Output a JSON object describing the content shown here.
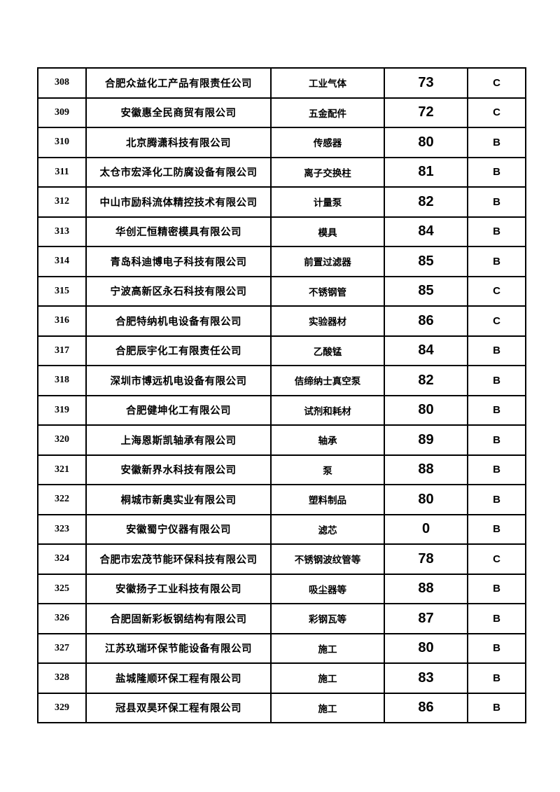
{
  "page": {
    "background_color": "#ffffff",
    "border_color": "#000000",
    "text_color": "#000000"
  },
  "table": {
    "columns": [
      {
        "key": "index"
      },
      {
        "key": "company"
      },
      {
        "key": "product"
      },
      {
        "key": "score"
      },
      {
        "key": "grade"
      }
    ],
    "rows": [
      {
        "index": "308",
        "company": "合肥众益化工产品有限责任公司",
        "product": "工业气体",
        "score": "73",
        "grade": "C"
      },
      {
        "index": "309",
        "company": "安徽惠全民商贸有限公司",
        "product": "五金配件",
        "score": "72",
        "grade": "C"
      },
      {
        "index": "310",
        "company": "北京腾潇科技有限公司",
        "product": "传感器",
        "score": "80",
        "grade": "B"
      },
      {
        "index": "311",
        "company": "太仓市宏泽化工防腐设备有限公司",
        "product": "离子交换柱",
        "score": "81",
        "grade": "B"
      },
      {
        "index": "312",
        "company": "中山市励科流体精控技术有限公司",
        "product": "计量泵",
        "score": "82",
        "grade": "B"
      },
      {
        "index": "313",
        "company": "华创汇恒精密模具有限公司",
        "product": "模具",
        "score": "84",
        "grade": "B"
      },
      {
        "index": "314",
        "company": "青岛科迪博电子科技有限公司",
        "product": "前置过滤器",
        "score": "85",
        "grade": "B"
      },
      {
        "index": "315",
        "company": "宁波高新区永石科技有限公司",
        "product": "不锈钢管",
        "score": "85",
        "grade": "C"
      },
      {
        "index": "316",
        "company": "合肥特纳机电设备有限公司",
        "product": "实验器材",
        "score": "86",
        "grade": "C"
      },
      {
        "index": "317",
        "company": "合肥辰宇化工有限责任公司",
        "product": "乙酸锰",
        "score": "84",
        "grade": "B"
      },
      {
        "index": "318",
        "company": "深圳市博远机电设备有限公司",
        "product": "佶缔纳士真空泵",
        "score": "82",
        "grade": "B"
      },
      {
        "index": "319",
        "company": "合肥健坤化工有限公司",
        "product": "试剂和耗材",
        "score": "80",
        "grade": "B"
      },
      {
        "index": "320",
        "company": "上海恩斯凯轴承有限公司",
        "product": "轴承",
        "score": "89",
        "grade": "B"
      },
      {
        "index": "321",
        "company": "安徽新界水科技有限公司",
        "product": "泵",
        "score": "88",
        "grade": "B"
      },
      {
        "index": "322",
        "company": "桐城市新奥实业有限公司",
        "product": "塑料制品",
        "score": "80",
        "grade": "B"
      },
      {
        "index": "323",
        "company": "安徽蜀宁仪器有限公司",
        "product": "滤芯",
        "score": "0",
        "grade": "B"
      },
      {
        "index": "324",
        "company": "合肥市宏茂节能环保科技有限公司",
        "product": "不锈钢波纹管等",
        "score": "78",
        "grade": "C"
      },
      {
        "index": "325",
        "company": "安徽扬子工业科技有限公司",
        "product": "吸尘器等",
        "score": "88",
        "grade": "B"
      },
      {
        "index": "326",
        "company": "合肥固新彩板钢结构有限公司",
        "product": "彩钢瓦等",
        "score": "87",
        "grade": "B"
      },
      {
        "index": "327",
        "company": "江苏玖瑞环保节能设备有限公司",
        "product": "施工",
        "score": "80",
        "grade": "B"
      },
      {
        "index": "328",
        "company": "盐城隆顺环保工程有限公司",
        "product": "施工",
        "score": "83",
        "grade": "B"
      },
      {
        "index": "329",
        "company": "冠县双昊环保工程有限公司",
        "product": "施工",
        "score": "86",
        "grade": "B"
      }
    ]
  }
}
